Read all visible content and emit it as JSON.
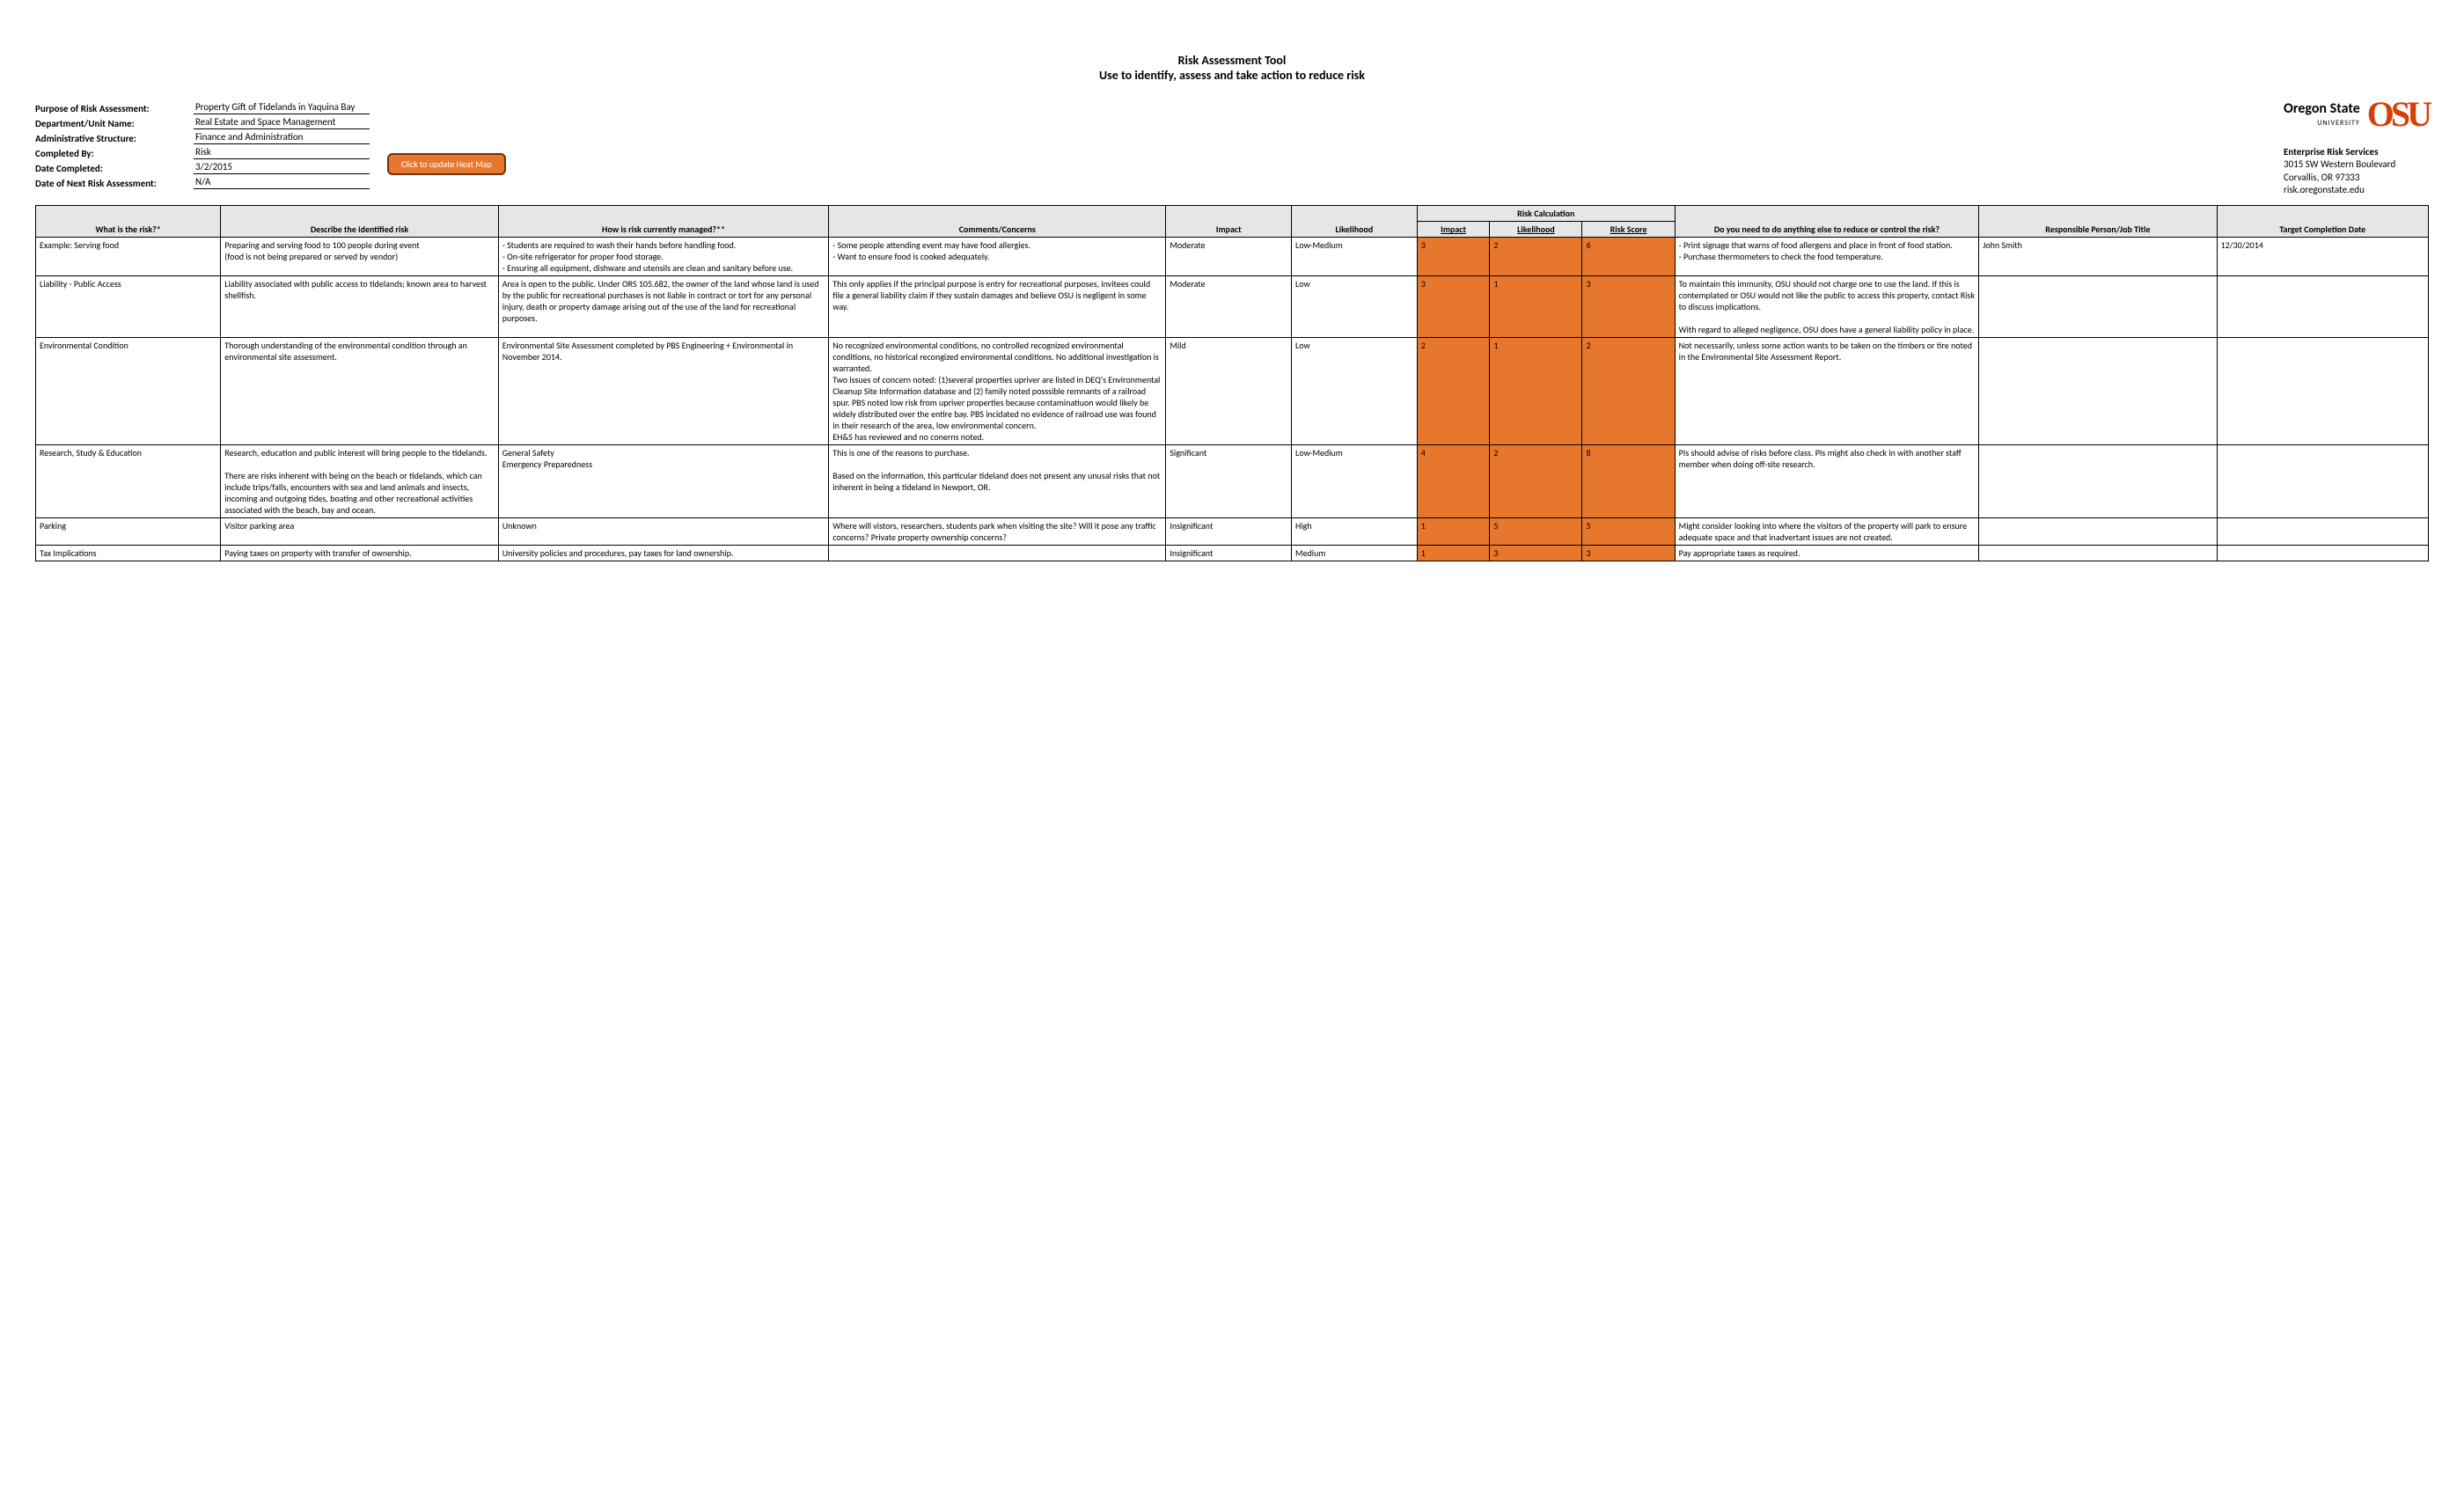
{
  "title_line1": "Risk Assessment Tool",
  "title_line2": "Use to identify, assess and take action to reduce risk",
  "logo": {
    "name": "Oregon State",
    "sub": "UNIVERSITY",
    "mark": "OSU",
    "brand_color": "#d73f09"
  },
  "contact": {
    "dept": "Enterprise Risk Services",
    "addr1": "3015 SW Western Boulevard",
    "addr2": "Corvallis, OR 97333",
    "web": "risk.oregonstate.edu"
  },
  "meta": [
    {
      "label": "Purpose of Risk Assessment:",
      "value": "Property Gift of Tidelands in Yaquina Bay"
    },
    {
      "label": "Department/Unit Name:",
      "value": "Real Estate and Space Management"
    },
    {
      "label": "Administrative Structure:",
      "value": "Finance and Administration"
    },
    {
      "label": "Completed By:",
      "value": "Risk"
    },
    {
      "label": "Date Completed:",
      "value": "3/2/2015"
    },
    {
      "label": "Date of Next Risk Assessment:",
      "value": "N/A"
    }
  ],
  "heatmap_button": "Click to update Heat Map",
  "table": {
    "group_header": "Risk Calculation",
    "columns": [
      "What is the risk?*",
      "Describe the identified risk",
      "How is risk currently managed?**",
      "Comments/Concerns",
      "Impact",
      "Likelihood",
      "Impact",
      "Likelihood",
      "Risk Score",
      "Do you need to do anything else to reduce or control the risk?",
      "Responsible Person/Job Title",
      "Target Completion Date"
    ],
    "calc_bg": "#e8772e",
    "rows": [
      {
        "risk": "Example: Serving food",
        "desc": "Preparing and serving food to 100 people during event\n(food is not being prepared or served by vendor)",
        "manage": "- Students are required to wash their hands before handling food.\n- On-site refrigerator for proper food storage.\n- Ensuring all equipment, dishware and utensils are clean and sanitary before use.",
        "comments": "- Some people attending event may have food allergies.\n- Want to ensure food is cooked adequately.",
        "impact": "Moderate",
        "likelihood": "Low-Medium",
        "ci": "3",
        "cl": "2",
        "cs": "6",
        "action": "- Print signage that warns of food allergens and place in front of food station.\n- Purchase thermometers to check the food temperature.",
        "resp": "John Smith",
        "date": "12/30/2014"
      },
      {
        "risk": "Liability - Public Access",
        "desc": "Liability associated with public access to tidelands; known area to harvest shellfish.",
        "manage": "Area is open to the public. Under ORS 105.682, the owner of the land whose land is used by the public for recreational purchases is not liable in contract or tort for any personal injury, death or property damage arising out of the use of the land for recreational purposes.",
        "comments": "This only applies if the principal purpose is entry for recreational purposes, invitees could file a general liability claim if they sustain damages and believe OSU is negligent in some way.",
        "impact": "Moderate",
        "likelihood": "Low",
        "ci": "3",
        "cl": "1",
        "cs": "3",
        "action": "To maintain this immunity, OSU should not charge one to use the land. If this is contemplated or OSU would not like the public to access this property, contact Risk to discuss implications.\n\nWith regard to alleged negligence, OSU does have a general liability policy in place.",
        "resp": "",
        "date": ""
      },
      {
        "risk": "Environmental Condition",
        "desc": "Thorough understanding of the environmental condition through an environmental site assessment.",
        "manage": "Environmental Site Assessment completed by PBS Engineering + Environmental in November 2014.",
        "comments": "No recognized environmental conditions, no controlled recognized environmental conditions, no historical recongized environmental conditions. No additional investigation is warranted.\nTwo issues of concern noted: (1)several properties upriver are listed in DEQ's Environmental Cleanup Site Information database and (2) family noted posssible remnants of a railroad spur. PBS noted low risk from upriver properties because contaminatiuon would likely be widely distributed over the entire bay. PBS incidated no evidence of railroad use was found in their research of the area, low environmental concern.\nEH&S has reviewed and no conerns noted.",
        "impact": "Mild",
        "likelihood": "Low",
        "ci": "2",
        "cl": "1",
        "cs": "2",
        "action": "Not necessarily, unless some action wants to be taken on the timbers or tire noted in the Environmental Site Assessment Report.",
        "resp": "",
        "date": ""
      },
      {
        "risk": "Research, Study & Education",
        "desc": "Research, education and public interest will bring people to the tidelands.\n\nThere are risks inherent with being on the beach or tidelands, which can include trips/falls, encounters with sea and land animals and insects, incoming and outgoing tides, boating and other recreational activities associated with the beach, bay and ocean.",
        "manage": "General Safety\nEmergency Preparedness",
        "comments": "This is one of the reasons to purchase.\n\nBased on the information, this particular tideland does not present any unusal risks that not inherent in being a tideland in Newport, OR.",
        "impact": "Significant",
        "likelihood": "Low-Medium",
        "ci": "4",
        "cl": "2",
        "cs": "8",
        "action": "PIs should advise of risks before class. PIs might also check in with another staff member when doing off-site research.",
        "resp": "",
        "date": ""
      },
      {
        "risk": "Parking",
        "desc": "Visitor parking area",
        "manage": "Unknown",
        "comments": "Where will vistors, researchers, students park when visiting the site?  Will it pose any traffic concerns? Private property ownership concerns?",
        "impact": "Insignificant",
        "likelihood": "High",
        "ci": "1",
        "cl": "5",
        "cs": "5",
        "action": "Might consider looking into where the visitors of the property will park to ensure adequate space and that inadvertant issues are not created.",
        "resp": "",
        "date": ""
      },
      {
        "risk": "Tax Implications",
        "desc": "Paying taxes on property with transfer of ownership.",
        "manage": "University policies and procedures, pay taxes for land ownership.",
        "comments": "",
        "impact": "Insignificant",
        "likelihood": "Medium",
        "ci": "1",
        "cl": "3",
        "cs": "3",
        "action": "Pay appropriate taxes as required.",
        "resp": "",
        "date": ""
      }
    ]
  }
}
